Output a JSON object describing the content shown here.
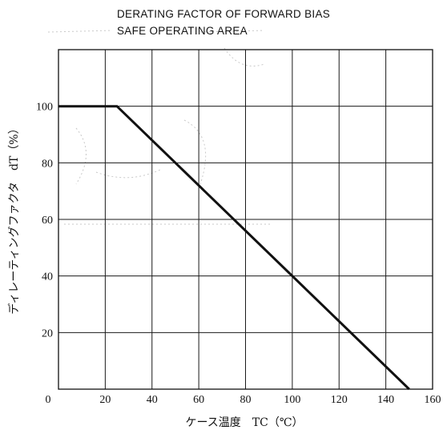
{
  "chart_data": {
    "type": "line",
    "title_lines": [
      "DERATING FACTOR OF FORWARD BIAS",
      "SAFE OPERATING AREA"
    ],
    "xlabel": "ケース温度　TC（℃）",
    "ylabel": "ディレーティングファクタ　dT（%）",
    "xlim": [
      0,
      160
    ],
    "ylim": [
      0,
      120
    ],
    "xticks": [
      0,
      20,
      40,
      60,
      80,
      100,
      120,
      140,
      160
    ],
    "yticks": [
      20,
      40,
      60,
      80,
      100
    ],
    "grid": true,
    "series": [
      {
        "x": [
          0,
          25,
          150
        ],
        "y": [
          100,
          100,
          0
        ]
      }
    ]
  }
}
